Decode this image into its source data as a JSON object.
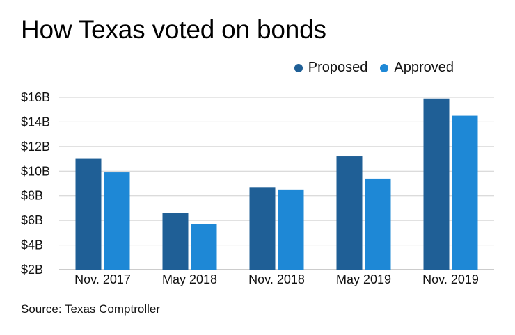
{
  "chart_data": {
    "type": "bar",
    "title": "How Texas voted on bonds",
    "categories": [
      "Nov. 2017",
      "May 2018",
      "Nov. 2018",
      "May 2019",
      "Nov. 2019"
    ],
    "series": [
      {
        "name": "Proposed",
        "values": [
          11.0,
          6.6,
          8.7,
          11.2,
          15.9
        ],
        "color": "#1f5f96"
      },
      {
        "name": "Approved",
        "values": [
          9.9,
          5.7,
          8.5,
          9.4,
          14.5
        ],
        "color": "#1e88d6"
      }
    ],
    "ylim": [
      2,
      16
    ],
    "yticks": [
      2,
      4,
      6,
      8,
      10,
      12,
      14,
      16
    ],
    "ytick_labels": [
      "$2B",
      "$4B",
      "$6B",
      "$8B",
      "$10B",
      "$12B",
      "$14B",
      "$16B"
    ],
    "xlabel": "",
    "ylabel": "",
    "legend": "top-right",
    "grid": true,
    "source": "Source: Texas Comptroller"
  }
}
